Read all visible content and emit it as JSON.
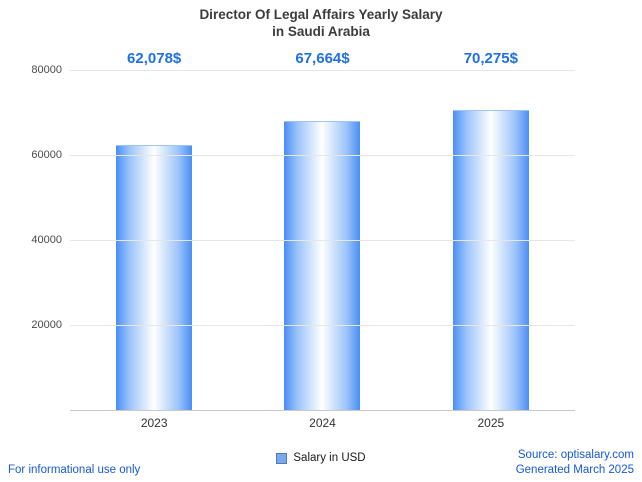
{
  "chart_data": {
    "type": "bar",
    "title_line1": "Director Of Legal Affairs Yearly Salary",
    "title_line2": "in Saudi Arabia",
    "categories": [
      "2023",
      "2024",
      "2025"
    ],
    "values": [
      62078,
      67664,
      70275
    ],
    "value_labels": [
      "62,078$",
      "67,664$",
      "70,275$"
    ],
    "ylim": [
      0,
      80000
    ],
    "yticks": [
      20000,
      40000,
      60000,
      80000
    ],
    "grid": "horizontal",
    "legend_position": "bottom-center",
    "legend_label": "Salary in USD"
  },
  "footer": {
    "disclaimer": "For informational use only",
    "source": "Source: optisalary.com",
    "generated": "Generated March 2025"
  },
  "colors": {
    "accent_blue": "#1f6fe5",
    "footer_blue": "#1558d6",
    "bar_edge": "#4a8ef5",
    "bar_center": "#ffffff",
    "gridline": "#e6e6e6",
    "title_text": "#3c3c3c"
  }
}
